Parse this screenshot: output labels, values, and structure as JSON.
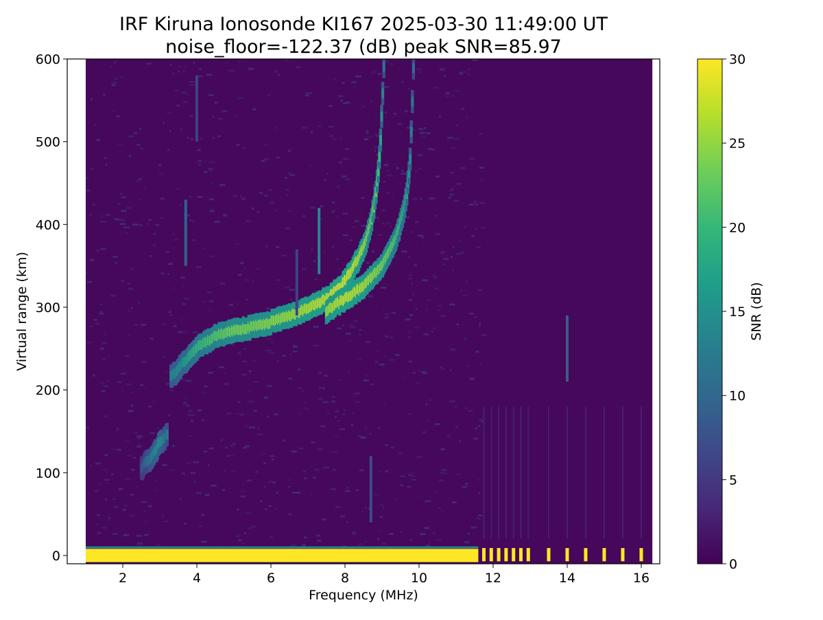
{
  "chart_data": {
    "type": "heatmap",
    "title": "IRF Kiruna Ionosonde KI167 2025-03-30 11:49:00  UT",
    "subtitle": "noise_floor=-122.37 (dB) peak SNR=85.97",
    "xlabel": "Frequency (MHz)",
    "ylabel": "Virtual range (km)",
    "xlim": [
      0.5,
      16.5
    ],
    "ylim": [
      -10,
      600
    ],
    "xticks": [
      2,
      4,
      6,
      8,
      10,
      12,
      14,
      16
    ],
    "yticks": [
      0,
      100,
      200,
      300,
      400,
      500,
      600
    ],
    "colorbar": {
      "label": "SNR (dB)",
      "range": [
        0,
        30
      ],
      "ticks": [
        0,
        5,
        10,
        15,
        20,
        25,
        30
      ],
      "colormap": "viridis",
      "stops": [
        "#440154",
        "#482878",
        "#3e4989",
        "#31688e",
        "#26828e",
        "#1f9e89",
        "#35b779",
        "#6ece58",
        "#b5de2b",
        "#fde725"
      ]
    },
    "data_extent": {
      "freq_min_mhz": 1.0,
      "freq_max_mhz": 16.3,
      "range_min_km": -10,
      "range_max_km": 600
    },
    "traces": [
      {
        "name": "ground",
        "points": [
          [
            1.0,
            0,
            30
          ],
          [
            3.0,
            0,
            30
          ],
          [
            5.0,
            0,
            30
          ],
          [
            7.0,
            0,
            30
          ],
          [
            9.0,
            0,
            30
          ],
          [
            11.6,
            0,
            30
          ]
        ],
        "discrete_columns_mhz": [
          11.75,
          11.95,
          12.15,
          12.35,
          12.55,
          12.75,
          12.95,
          13.5,
          14.0,
          14.5,
          15.0,
          15.5,
          16.0
        ]
      },
      {
        "name": "E-region trace",
        "points": [
          [
            2.5,
            105,
            8
          ],
          [
            2.8,
            120,
            14
          ],
          [
            3.0,
            135,
            16
          ],
          [
            3.2,
            145,
            12
          ]
        ]
      },
      {
        "name": "O-mode F trace",
        "points": [
          [
            3.3,
            215,
            14
          ],
          [
            3.6,
            230,
            16
          ],
          [
            4.0,
            250,
            20
          ],
          [
            4.5,
            265,
            22
          ],
          [
            5.0,
            272,
            24
          ],
          [
            5.5,
            276,
            24
          ],
          [
            6.0,
            282,
            25
          ],
          [
            6.5,
            290,
            26
          ],
          [
            7.0,
            298,
            27
          ],
          [
            7.5,
            310,
            28
          ],
          [
            7.9,
            325,
            29
          ],
          [
            8.2,
            345,
            28
          ],
          [
            8.5,
            370,
            26
          ],
          [
            8.7,
            400,
            23
          ],
          [
            8.85,
            440,
            22
          ],
          [
            8.95,
            490,
            19
          ],
          [
            9.0,
            540,
            15
          ],
          [
            9.05,
            590,
            12
          ]
        ]
      },
      {
        "name": "X-mode F trace",
        "points": [
          [
            7.5,
            295,
            26
          ],
          [
            8.0,
            310,
            28
          ],
          [
            8.5,
            325,
            27
          ],
          [
            9.0,
            350,
            24
          ],
          [
            9.3,
            375,
            22
          ],
          [
            9.5,
            400,
            20
          ],
          [
            9.65,
            430,
            18
          ],
          [
            9.75,
            470,
            15
          ],
          [
            9.8,
            520,
            13
          ],
          [
            9.85,
            590,
            11
          ]
        ]
      },
      {
        "name": "vertical streaks",
        "points": [
          [
            7.3,
            380,
            14
          ],
          [
            3.7,
            390,
            9
          ],
          [
            14.0,
            250,
            9
          ],
          [
            4.0,
            540,
            6
          ],
          [
            8.7,
            80,
            7
          ],
          [
            6.7,
            330,
            6
          ]
        ]
      }
    ]
  }
}
